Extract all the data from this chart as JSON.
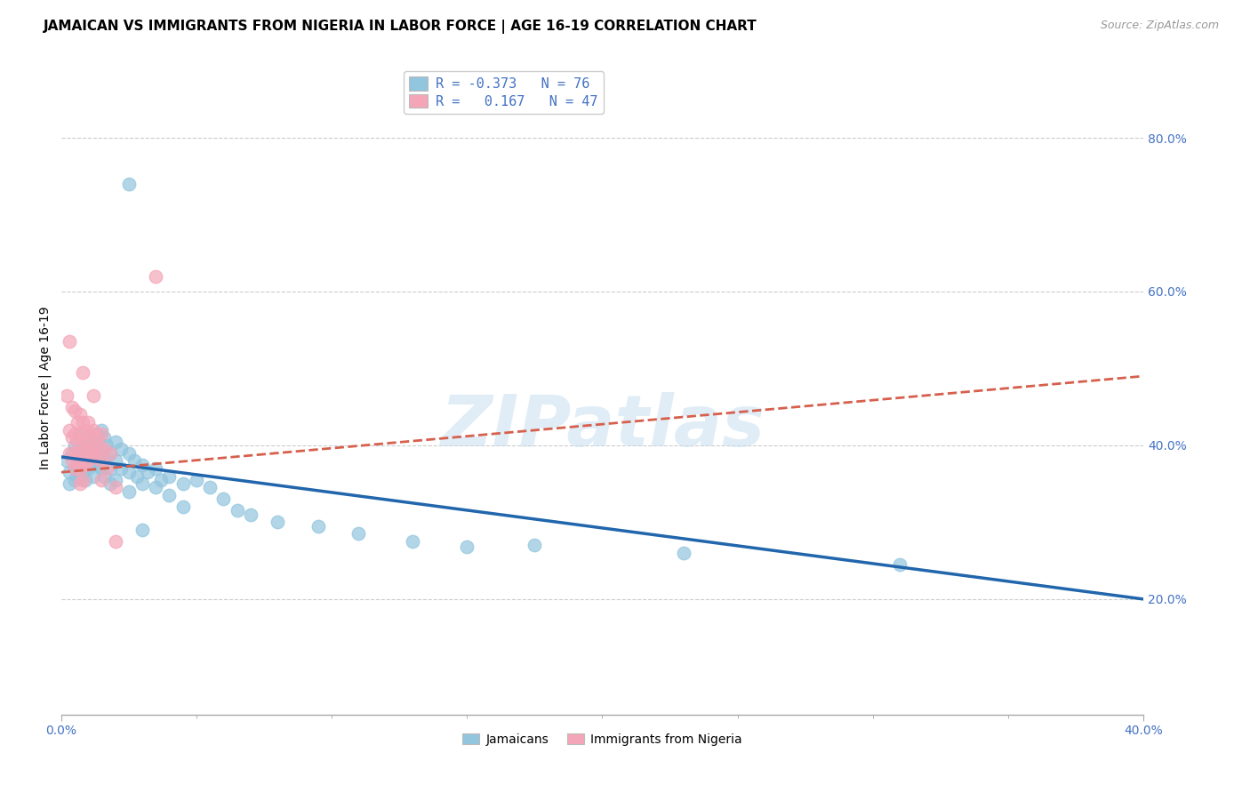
{
  "title": "JAMAICAN VS IMMIGRANTS FROM NIGERIA IN LABOR FORCE | AGE 16-19 CORRELATION CHART",
  "source": "Source: ZipAtlas.com",
  "ylabel": "In Labor Force | Age 16-19",
  "yticks": [
    0.2,
    0.4,
    0.6,
    0.8
  ],
  "ytick_labels": [
    "20.0%",
    "40.0%",
    "60.0%",
    "80.0%"
  ],
  "xlim": [
    0.0,
    0.4
  ],
  "ylim": [
    0.05,
    0.9
  ],
  "watermark": "ZIPatlas",
  "blue_color": "#92c5de",
  "pink_color": "#f4a6b8",
  "blue_line_color": "#2166ac",
  "pink_line_color": "#d6604d",
  "blue_scatter": [
    [
      0.002,
      0.38
    ],
    [
      0.003,
      0.365
    ],
    [
      0.003,
      0.35
    ],
    [
      0.004,
      0.39
    ],
    [
      0.005,
      0.4
    ],
    [
      0.005,
      0.37
    ],
    [
      0.005,
      0.355
    ],
    [
      0.006,
      0.385
    ],
    [
      0.006,
      0.37
    ],
    [
      0.006,
      0.36
    ],
    [
      0.007,
      0.415
    ],
    [
      0.007,
      0.395
    ],
    [
      0.007,
      0.378
    ],
    [
      0.007,
      0.358
    ],
    [
      0.008,
      0.4
    ],
    [
      0.008,
      0.385
    ],
    [
      0.008,
      0.365
    ],
    [
      0.009,
      0.395
    ],
    [
      0.009,
      0.375
    ],
    [
      0.009,
      0.355
    ],
    [
      0.01,
      0.41
    ],
    [
      0.01,
      0.39
    ],
    [
      0.01,
      0.37
    ],
    [
      0.011,
      0.405
    ],
    [
      0.011,
      0.385
    ],
    [
      0.012,
      0.4
    ],
    [
      0.012,
      0.38
    ],
    [
      0.012,
      0.36
    ],
    [
      0.013,
      0.415
    ],
    [
      0.013,
      0.395
    ],
    [
      0.013,
      0.375
    ],
    [
      0.014,
      0.405
    ],
    [
      0.014,
      0.38
    ],
    [
      0.015,
      0.42
    ],
    [
      0.015,
      0.395
    ],
    [
      0.015,
      0.37
    ],
    [
      0.016,
      0.41
    ],
    [
      0.016,
      0.385
    ],
    [
      0.016,
      0.36
    ],
    [
      0.017,
      0.4
    ],
    [
      0.018,
      0.39
    ],
    [
      0.018,
      0.37
    ],
    [
      0.018,
      0.35
    ],
    [
      0.02,
      0.405
    ],
    [
      0.02,
      0.38
    ],
    [
      0.02,
      0.355
    ],
    [
      0.022,
      0.395
    ],
    [
      0.022,
      0.37
    ],
    [
      0.025,
      0.39
    ],
    [
      0.025,
      0.365
    ],
    [
      0.025,
      0.34
    ],
    [
      0.027,
      0.38
    ],
    [
      0.028,
      0.36
    ],
    [
      0.03,
      0.375
    ],
    [
      0.03,
      0.35
    ],
    [
      0.03,
      0.29
    ],
    [
      0.032,
      0.365
    ],
    [
      0.035,
      0.37
    ],
    [
      0.035,
      0.345
    ],
    [
      0.037,
      0.355
    ],
    [
      0.04,
      0.36
    ],
    [
      0.04,
      0.335
    ],
    [
      0.045,
      0.35
    ],
    [
      0.045,
      0.32
    ],
    [
      0.05,
      0.355
    ],
    [
      0.055,
      0.345
    ],
    [
      0.06,
      0.33
    ],
    [
      0.065,
      0.315
    ],
    [
      0.07,
      0.31
    ],
    [
      0.08,
      0.3
    ],
    [
      0.095,
      0.295
    ],
    [
      0.11,
      0.285
    ],
    [
      0.13,
      0.275
    ],
    [
      0.15,
      0.268
    ],
    [
      0.175,
      0.27
    ],
    [
      0.23,
      0.26
    ],
    [
      0.31,
      0.245
    ],
    [
      0.025,
      0.74
    ]
  ],
  "pink_scatter": [
    [
      0.002,
      0.465
    ],
    [
      0.003,
      0.42
    ],
    [
      0.003,
      0.39
    ],
    [
      0.004,
      0.45
    ],
    [
      0.004,
      0.41
    ],
    [
      0.004,
      0.38
    ],
    [
      0.005,
      0.445
    ],
    [
      0.005,
      0.415
    ],
    [
      0.005,
      0.39
    ],
    [
      0.005,
      0.37
    ],
    [
      0.006,
      0.43
    ],
    [
      0.006,
      0.405
    ],
    [
      0.006,
      0.38
    ],
    [
      0.007,
      0.44
    ],
    [
      0.007,
      0.415
    ],
    [
      0.007,
      0.39
    ],
    [
      0.007,
      0.37
    ],
    [
      0.007,
      0.35
    ],
    [
      0.008,
      0.43
    ],
    [
      0.008,
      0.405
    ],
    [
      0.008,
      0.38
    ],
    [
      0.008,
      0.355
    ],
    [
      0.009,
      0.42
    ],
    [
      0.009,
      0.395
    ],
    [
      0.009,
      0.375
    ],
    [
      0.01,
      0.43
    ],
    [
      0.01,
      0.405
    ],
    [
      0.01,
      0.38
    ],
    [
      0.011,
      0.415
    ],
    [
      0.011,
      0.39
    ],
    [
      0.012,
      0.42
    ],
    [
      0.012,
      0.395
    ],
    [
      0.013,
      0.41
    ],
    [
      0.013,
      0.385
    ],
    [
      0.014,
      0.4
    ],
    [
      0.015,
      0.415
    ],
    [
      0.015,
      0.38
    ],
    [
      0.015,
      0.355
    ],
    [
      0.016,
      0.395
    ],
    [
      0.017,
      0.37
    ],
    [
      0.018,
      0.39
    ],
    [
      0.02,
      0.345
    ],
    [
      0.02,
      0.275
    ],
    [
      0.035,
      0.62
    ],
    [
      0.003,
      0.535
    ],
    [
      0.008,
      0.495
    ],
    [
      0.012,
      0.465
    ]
  ],
  "blue_trend_x": [
    0.0,
    0.4
  ],
  "blue_trend_y": [
    0.385,
    0.2
  ],
  "pink_trend_x": [
    0.0,
    0.4
  ],
  "pink_trend_y": [
    0.365,
    0.49
  ],
  "title_fontsize": 11,
  "tick_fontsize": 10,
  "legend_fontsize": 11
}
